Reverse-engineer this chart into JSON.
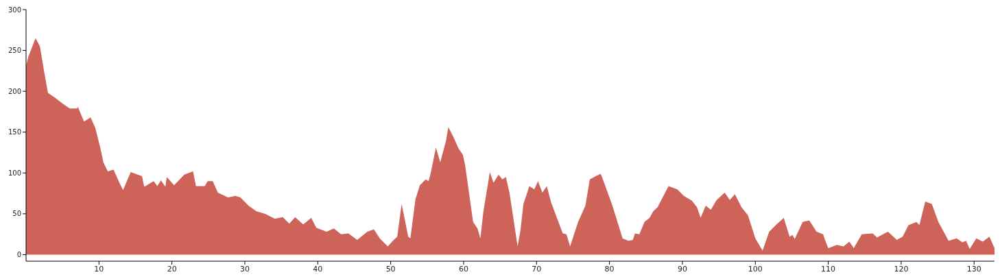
{
  "chart_data": {
    "type": "area",
    "color": "#cd6359",
    "x": [
      0,
      0.3,
      1.3,
      1.9,
      2.5,
      3.0,
      4,
      5,
      6,
      7,
      7.1,
      7.95,
      8.85,
      9.5,
      10.2,
      10.6,
      11.2,
      12,
      12.8,
      13.3,
      14.35,
      15.9,
      16.2,
      17.5,
      18,
      18.5,
      19.1,
      19.3,
      20.3,
      21.7,
      22.9,
      23.3,
      24.5,
      24.9,
      25.6,
      26.3,
      27.7,
      28.7,
      29.4,
      30.5,
      31.6,
      32.8,
      34.1,
      35.2,
      36.1,
      36.9,
      38,
      39.1,
      39.8,
      41.2,
      42.2,
      43.2,
      44.2,
      45.4,
      46.8,
      47.7,
      48.5,
      49.6,
      50.3,
      50.9,
      51.5,
      52.4,
      52.7,
      53.4,
      54.0,
      54.8,
      55.2,
      55.5,
      56.2,
      56.8,
      57.6,
      57.9,
      58.5,
      59.3,
      59.9,
      60.2,
      61.3,
      61.9,
      62.3,
      62.7,
      63.6,
      64.1,
      64.8,
      65.3,
      65.8,
      66.3,
      66.9,
      67.4,
      67.8,
      68.2,
      68.8,
      69.0,
      69.7,
      70.2,
      70.8,
      71.1,
      71.4,
      72.0,
      73.0,
      73.6,
      74.1,
      74.6,
      75.7,
      76.7,
      77.3,
      78.1,
      78.8,
      79.6,
      80.4,
      81.8,
      82.6,
      83.2,
      83.5,
      84.1,
      84.8,
      85.5,
      86.0,
      86.6,
      87.4,
      88.1,
      89.3,
      90.2,
      91.3,
      92.0,
      92.5,
      93.2,
      93.9,
      94.7,
      95.8,
      96.5,
      97.2,
      98.1,
      99.0,
      100.0,
      101.0,
      101.9,
      102.8,
      103.9,
      104.7,
      105.1,
      105.4,
      106.5,
      107.4,
      108.4,
      109.3,
      109.6,
      110.0,
      111.2,
      112.1,
      112.9,
      113.5,
      114.6,
      116.1,
      116.7,
      117.5,
      118.2,
      119.4,
      120.2,
      121.0,
      122.1,
      122.5,
      123.3,
      124.2,
      125.1,
      126.5,
      127.6,
      128.4,
      128.9,
      129.4,
      130.3,
      131.2,
      132.1,
      132.8
    ],
    "values": [
      231,
      242,
      265,
      255,
      223,
      198,
      192,
      185,
      179,
      179,
      181,
      163,
      168,
      155,
      130,
      113,
      102,
      104,
      88,
      79,
      101,
      96,
      83,
      90,
      84,
      91,
      83,
      95,
      85,
      98,
      102,
      84,
      84,
      90,
      90,
      76,
      70,
      72,
      70,
      60,
      53,
      50,
      44,
      46,
      38,
      46,
      37,
      45,
      33,
      28,
      32,
      25,
      26,
      18,
      28,
      31,
      20,
      10,
      17,
      22,
      62,
      22,
      20,
      68,
      85,
      92,
      90,
      100,
      131,
      113,
      140,
      156,
      146,
      130,
      122,
      110,
      40,
      32,
      20,
      52,
      101,
      88,
      98,
      92,
      95,
      75,
      40,
      10,
      30,
      62,
      78,
      84,
      80,
      90,
      76,
      80,
      84,
      64,
      40,
      26,
      25,
      10,
      40,
      60,
      92,
      96,
      99,
      80,
      60,
      20,
      17,
      18,
      26,
      25,
      40,
      45,
      53,
      58,
      72,
      84,
      80,
      72,
      66,
      58,
      45,
      60,
      55,
      67,
      76,
      67,
      74,
      58,
      48,
      20,
      5,
      28,
      36,
      45,
      22,
      24,
      19,
      40,
      42,
      28,
      25,
      17,
      8,
      12,
      10,
      16,
      8,
      25,
      26,
      21,
      25,
      28,
      18,
      22,
      36,
      40,
      36,
      65,
      62,
      40,
      17,
      20,
      15,
      17,
      7,
      20,
      16,
      22,
      8
    ],
    "xlim": [
      0,
      132.8
    ],
    "xticks": [
      10,
      20,
      30,
      40,
      50,
      60,
      70,
      80,
      90,
      100,
      110,
      120,
      130
    ],
    "ylim": [
      -8,
      300
    ],
    "yticks": [
      0,
      50,
      100,
      150,
      200,
      250,
      300
    ]
  }
}
